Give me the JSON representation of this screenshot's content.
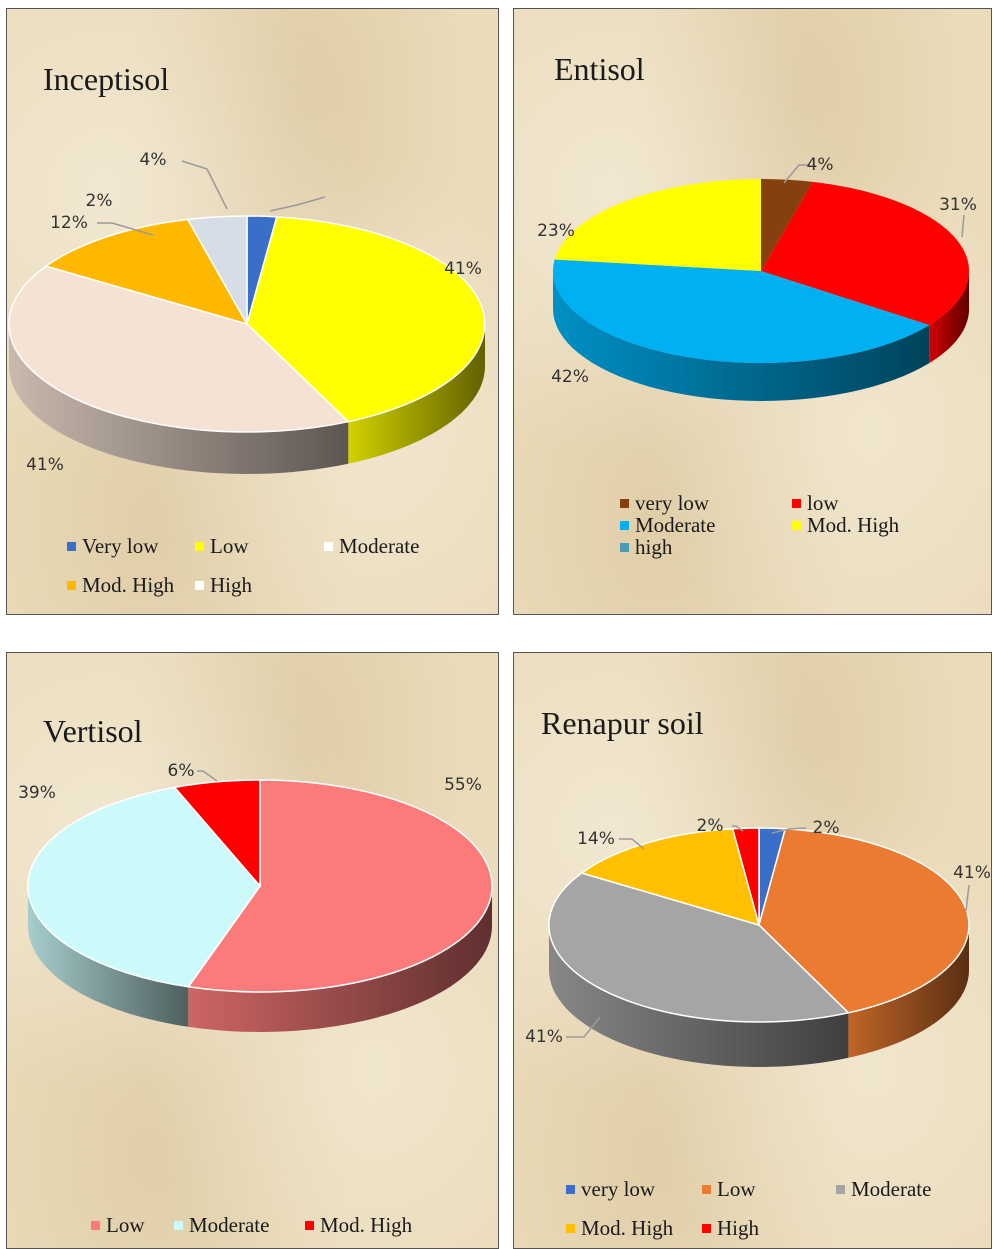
{
  "chart_data": [
    {
      "type": "pie",
      "title": "Inceptisol",
      "slices": [
        {
          "label": "Very low",
          "value": 2,
          "display": "2%",
          "color": "#3b6ec9"
        },
        {
          "label": "Low",
          "value": 41,
          "display": "41%",
          "color": "#ffff00"
        },
        {
          "label": "Moderate",
          "value": 41,
          "display": "41%",
          "color": "#f5e2d4"
        },
        {
          "label": "Mod. High",
          "value": 12,
          "display": "12%",
          "color": "#ffb800"
        },
        {
          "label": "High",
          "value": 4,
          "display": "4%",
          "color": "#d7dde6"
        }
      ],
      "legend_position": "bottom"
    },
    {
      "type": "pie",
      "title": "Entisol",
      "slices": [
        {
          "label": "very low",
          "value": 4,
          "display": "4%",
          "color": "#86400f"
        },
        {
          "label": "low",
          "value": 31,
          "display": "31%",
          "color": "#ff0000"
        },
        {
          "label": "Moderate",
          "value": 42,
          "display": "42%",
          "color": "#00b0f0"
        },
        {
          "label": "Mod. High",
          "value": 23,
          "display": "23%",
          "color": "#ffff00"
        },
        {
          "label": "high",
          "value": 0,
          "display": "",
          "color": "#4a9bb8"
        }
      ],
      "legend_position": "bottom"
    },
    {
      "type": "pie",
      "title": "Vertisol",
      "slices": [
        {
          "label": "Low",
          "value": 55,
          "display": "55%",
          "color": "#fb7b7b"
        },
        {
          "label": "Moderate",
          "value": 39,
          "display": "39%",
          "color": "#ccfafa"
        },
        {
          "label": "Mod. High",
          "value": 6,
          "display": "6%",
          "color": "#ff0000"
        }
      ],
      "legend_position": "bottom"
    },
    {
      "type": "pie",
      "title": "Renapur soil",
      "slices": [
        {
          "label": "very low",
          "value": 2,
          "display": "2%",
          "color": "#3b6ec9"
        },
        {
          "label": "Low",
          "value": 41,
          "display": "41%",
          "color": "#ea7b30"
        },
        {
          "label": "Moderate",
          "value": 41,
          "display": "41%",
          "color": "#a5a5a5"
        },
        {
          "label": "Mod. High",
          "value": 14,
          "display": "14%",
          "color": "#ffc000"
        },
        {
          "label": "High",
          "value": 2,
          "display": "2%",
          "color": "#ff0000"
        }
      ],
      "legend_position": "bottom"
    }
  ]
}
